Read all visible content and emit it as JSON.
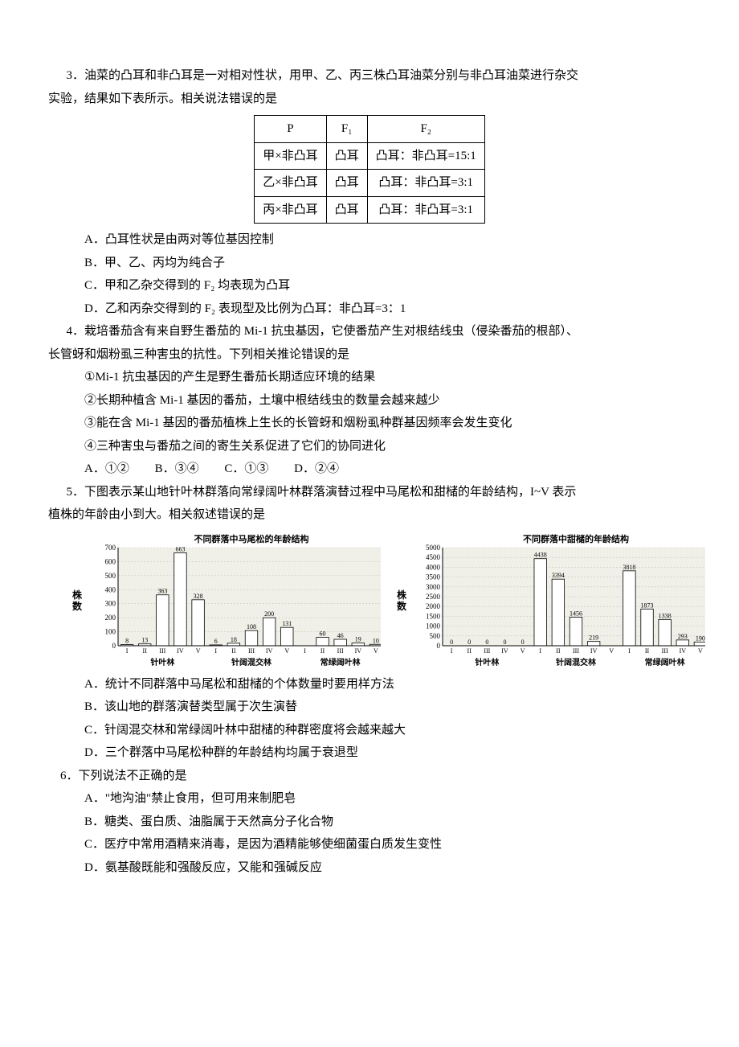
{
  "q3": {
    "stem1": "3．油菜的凸耳和非凸耳是一对相对性状，用甲、乙、丙三株凸耳油菜分别与非凸耳油菜进行杂交",
    "stem2": "实验，结果如下表所示。相关说法错误的是",
    "table": {
      "header": [
        "P",
        "F₁",
        "F₂"
      ],
      "rows": [
        [
          "甲×非凸耳",
          "凸耳",
          "凸耳：非凸耳=15:1"
        ],
        [
          "乙×非凸耳",
          "凸耳",
          "凸耳：非凸耳=3:1"
        ],
        [
          "丙×非凸耳",
          "凸耳",
          "凸耳：非凸耳=3:1"
        ]
      ]
    },
    "opts": {
      "A": "A．凸耳性状是由两对等位基因控制",
      "B": "B．甲、乙、丙均为纯合子",
      "C": "C．甲和乙杂交得到的 F₂ 均表现为凸耳",
      "D": "D．乙和丙杂交得到的 F₂ 表现型及比例为凸耳：非凸耳=3：1"
    }
  },
  "q4": {
    "stem1": "4．栽培番茄含有来自野生番茄的 Mi-1 抗虫基因，它使番茄产生对根结线虫（侵染番茄的根部）、",
    "stem2": "长管蚜和烟粉虱三种害虫的抗性。下列相关推论错误的是",
    "items": [
      "①Mi-1 抗虫基因的产生是野生番茄长期适应环境的结果",
      "②长期种植含 Mi-1 基因的番茄，土壤中根结线虫的数量会越来越少",
      "③能在含 Mi-1 基因的番茄植株上生长的长管蚜和烟粉虱种群基因频率会发生变化",
      "④三种害虫与番茄之间的寄生关系促进了它们的协同进化"
    ],
    "opts": {
      "A": "A．①②",
      "B": "B．③④",
      "C": "C．①③",
      "D": "D．②④"
    }
  },
  "q5": {
    "stem1": "5．下图表示某山地针叶林群落向常绿阔叶林群落演替过程中马尾松和甜槠的年龄结构，I~V 表示",
    "stem2": "植株的年龄由小到大。相关叙述错误的是",
    "chart1": {
      "title": "不同群落中马尾松的年龄结构",
      "ylabel": "株数",
      "ymax": 700,
      "ystep": 100,
      "bg": "#f0f0e8",
      "grid_color": "#c8c8c0",
      "bar_fill": "#ffffff",
      "bar_stroke": "#000000",
      "text_color": "#000000",
      "ticks": [
        "I",
        "II",
        "III",
        "IV",
        "V",
        "I",
        "II",
        "III",
        "IV",
        "V",
        "I",
        "II",
        "III",
        "IV",
        "V"
      ],
      "groups": [
        "针叶林",
        "针阔混交林",
        "常绿阔叶林"
      ],
      "values": [
        8,
        13,
        363,
        663,
        328,
        6,
        18,
        108,
        200,
        131,
        0,
        60,
        46,
        19,
        10
      ],
      "labels": [
        "8",
        "13",
        "363",
        "663",
        "328",
        "6",
        "18",
        "108",
        "200",
        "131",
        "",
        "60",
        "46",
        "19",
        "10"
      ]
    },
    "chart2": {
      "title": "不同群落中甜槠的年龄结构",
      "ylabel": "株数",
      "ymax": 5000,
      "ystep": 500,
      "bg": "#f0f0e8",
      "grid_color": "#c8c8c0",
      "bar_fill": "#ffffff",
      "bar_stroke": "#000000",
      "text_color": "#000000",
      "ticks": [
        "I",
        "II",
        "III",
        "IV",
        "V",
        "I",
        "II",
        "III",
        "IV",
        "V",
        "I",
        "II",
        "III",
        "IV",
        "V"
      ],
      "groups": [
        "针叶林",
        "针阔混交林",
        "常绿阔叶林"
      ],
      "values": [
        0,
        0,
        0,
        0,
        0,
        4438,
        3394,
        1456,
        219,
        0,
        3818,
        1873,
        1338,
        293,
        190
      ],
      "labels": [
        "0",
        "0",
        "0",
        "0",
        "0",
        "4438",
        "3394",
        "1456",
        "219",
        "",
        "3818",
        "1873",
        "1338",
        "293",
        "190"
      ]
    },
    "opts": {
      "A": "A．统计不同群落中马尾松和甜槠的个体数量时要用样方法",
      "B": "B．该山地的群落演替类型属于次生演替",
      "C": "C．针阔混交林和常绿阔叶林中甜槠的种群密度将会越来越大",
      "D": "D．三个群落中马尾松种群的年龄结构均属于衰退型"
    }
  },
  "q6": {
    "stem": "6．下列说法不正确的是",
    "opts": {
      "A": "A．\"地沟油\"禁止食用，但可用来制肥皂",
      "B": "B．糖类、蛋白质、油脂属于天然高分子化合物",
      "C": "C．医疗中常用酒精来消毒，是因为酒精能够使细菌蛋白质发生变性",
      "D": "D．氨基酸既能和强酸反应，又能和强碱反应"
    }
  }
}
